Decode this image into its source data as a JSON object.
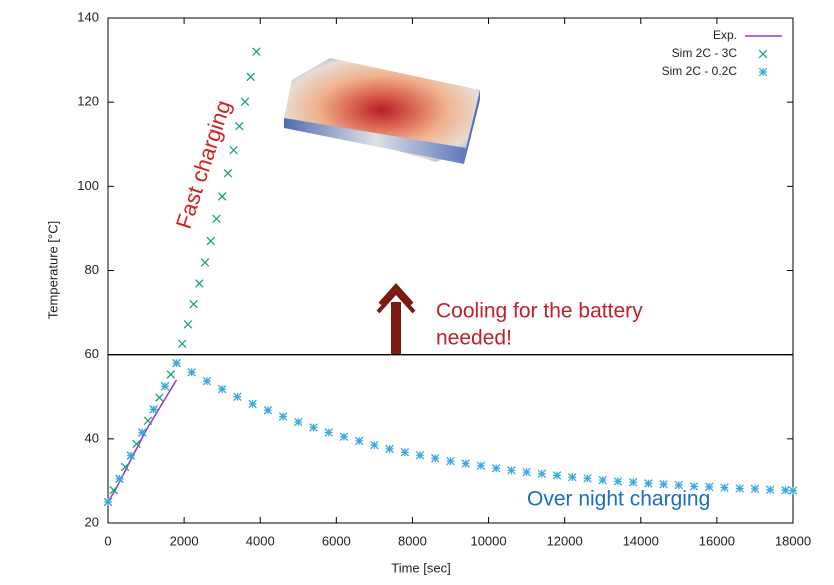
{
  "chart_data": {
    "type": "scatter",
    "xlabel": "Time [sec]",
    "ylabel": "Temperature [°C]",
    "xlim": [
      0,
      18000
    ],
    "ylim": [
      20,
      140
    ],
    "xticks": [
      0,
      2000,
      4000,
      6000,
      8000,
      10000,
      12000,
      14000,
      16000,
      18000
    ],
    "yticks": [
      20,
      40,
      60,
      80,
      100,
      120,
      140
    ],
    "hlines": [
      60
    ],
    "legend": "top-right",
    "series": [
      {
        "name": "Exp.",
        "color": "#9b30d9",
        "marker": "line",
        "x": [
          0,
          200,
          400,
          600,
          800,
          1000,
          1200,
          1400,
          1600,
          1800
        ],
        "values": [
          25,
          28,
          31.5,
          35,
          38.5,
          42,
          45,
          48,
          51,
          54
        ]
      },
      {
        "name": "Sim 2C - 3C",
        "color": "#1aa37a",
        "marker": "x",
        "x": [
          0,
          150,
          300,
          450,
          600,
          750,
          900,
          1050,
          1200,
          1350,
          1500,
          1650,
          1800,
          1950,
          2100,
          2250,
          2400,
          2550,
          2700,
          2850,
          3000,
          3150,
          3300,
          3450,
          3600,
          3750,
          3900
        ],
        "values": [
          25,
          27.8,
          30.5,
          33.3,
          36,
          38.8,
          41.5,
          44.3,
          47,
          49.8,
          52.5,
          55.3,
          58,
          62.6,
          67.2,
          72.0,
          76.9,
          81.9,
          87.0,
          92.3,
          97.6,
          103.1,
          108.6,
          114.3,
          120.1,
          126.0,
          132.0
        ]
      },
      {
        "name": "Sim 2C - 0.2C",
        "color": "#3aa8e0",
        "marker": "asterisk",
        "x": [
          0,
          300,
          600,
          900,
          1200,
          1500,
          1800,
          2200,
          2600,
          3000,
          3400,
          3800,
          4200,
          4600,
          5000,
          5400,
          5800,
          6200,
          6600,
          7000,
          7400,
          7800,
          8200,
          8600,
          9000,
          9400,
          9800,
          10200,
          10600,
          11000,
          11400,
          11800,
          12200,
          12600,
          13000,
          13400,
          13800,
          14200,
          14600,
          15000,
          15400,
          15800,
          16200,
          16600,
          17000,
          17400,
          17800,
          18000
        ],
        "values": [
          25,
          30.5,
          36,
          41.5,
          47,
          52.5,
          58,
          55.8,
          53.7,
          51.8,
          50.0,
          48.3,
          46.8,
          45.3,
          44.0,
          42.7,
          41.5,
          40.5,
          39.5,
          38.5,
          37.6,
          36.8,
          36.1,
          35.4,
          34.7,
          34.1,
          33.6,
          33.0,
          32.5,
          32.1,
          31.7,
          31.3,
          30.9,
          30.6,
          30.2,
          29.9,
          29.7,
          29.4,
          29.2,
          29.0,
          28.7,
          28.6,
          28.4,
          28.2,
          28.1,
          27.9,
          27.8,
          27.7
        ]
      }
    ],
    "annotations": [
      {
        "text": "Fast charging",
        "color": "#d42020"
      },
      {
        "text": "Cooling for the battery",
        "color": "#c0202a"
      },
      {
        "text": "needed!",
        "color": "#c0202a"
      },
      {
        "text": "Over night charging",
        "color": "#1a6fc0"
      }
    ]
  }
}
